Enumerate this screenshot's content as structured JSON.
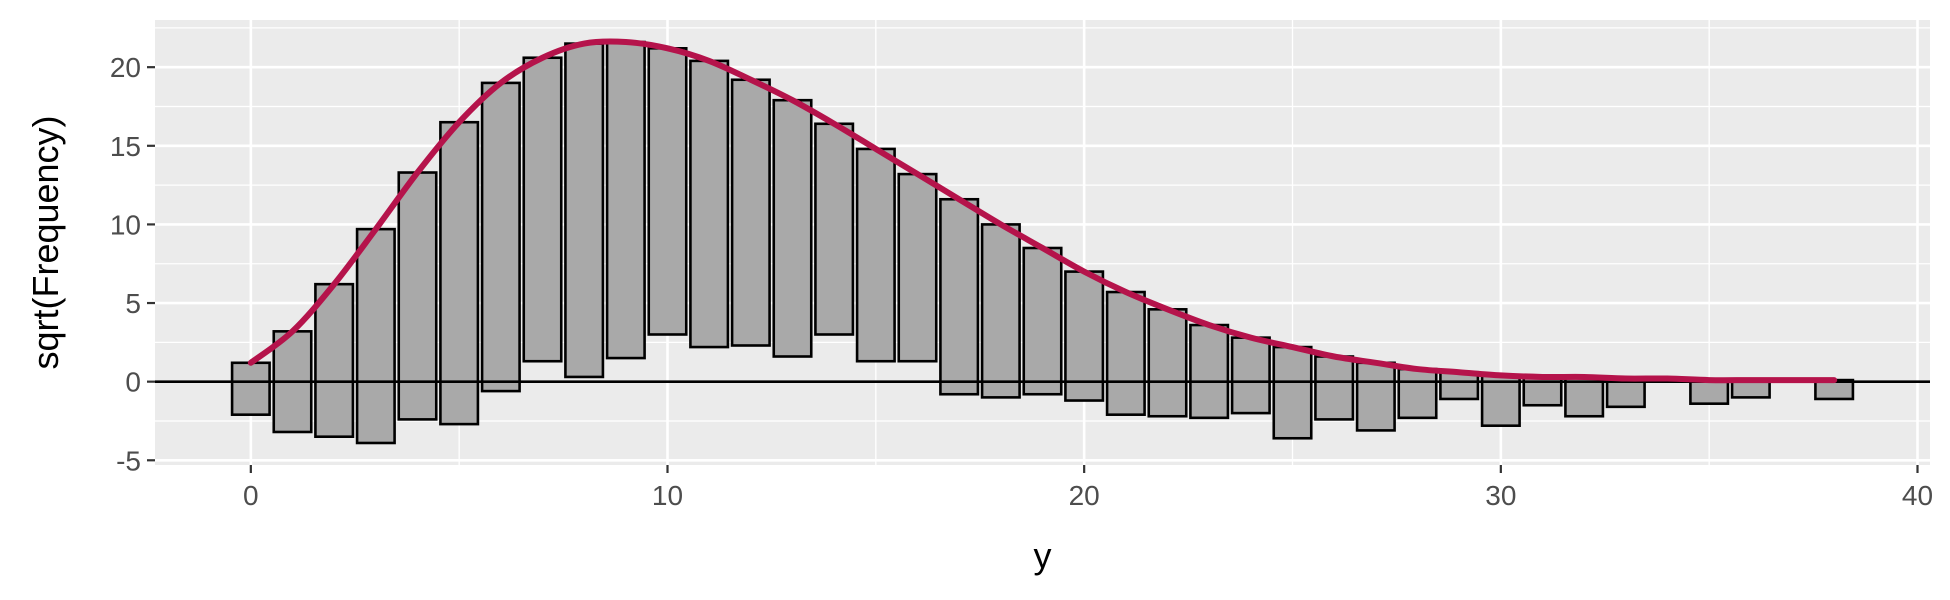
{
  "chart_data": {
    "type": "bar",
    "subtype": "hanging-rootogram",
    "title": "",
    "xlabel": "y",
    "ylabel": "sqrt(Frequency)",
    "xlim": [
      -2.3,
      40.3
    ],
    "ylim": [
      -5.3,
      23
    ],
    "x_ticks": [
      0,
      10,
      20,
      30,
      40
    ],
    "y_ticks": [
      -5,
      0,
      5,
      10,
      15,
      20
    ],
    "grid": true,
    "legend": "none",
    "bar_width": 0.9,
    "bars": [
      {
        "x": 0,
        "top": 1.2,
        "bottom": -2.1
      },
      {
        "x": 1,
        "top": 3.2,
        "bottom": -3.2
      },
      {
        "x": 2,
        "top": 6.2,
        "bottom": -3.5
      },
      {
        "x": 3,
        "top": 9.7,
        "bottom": -3.9
      },
      {
        "x": 4,
        "top": 13.3,
        "bottom": -2.4
      },
      {
        "x": 5,
        "top": 16.5,
        "bottom": -2.7
      },
      {
        "x": 6,
        "top": 19.0,
        "bottom": -0.6
      },
      {
        "x": 7,
        "top": 20.6,
        "bottom": 1.3
      },
      {
        "x": 8,
        "top": 21.5,
        "bottom": 0.3
      },
      {
        "x": 9,
        "top": 21.6,
        "bottom": 1.5
      },
      {
        "x": 10,
        "top": 21.2,
        "bottom": 3.0
      },
      {
        "x": 11,
        "top": 20.4,
        "bottom": 2.2
      },
      {
        "x": 12,
        "top": 19.2,
        "bottom": 2.3
      },
      {
        "x": 13,
        "top": 17.9,
        "bottom": 1.6
      },
      {
        "x": 14,
        "top": 16.4,
        "bottom": 3.0
      },
      {
        "x": 15,
        "top": 14.8,
        "bottom": 1.3
      },
      {
        "x": 16,
        "top": 13.2,
        "bottom": 1.3
      },
      {
        "x": 17,
        "top": 11.6,
        "bottom": -0.8
      },
      {
        "x": 18,
        "top": 10.0,
        "bottom": -1.0
      },
      {
        "x": 19,
        "top": 8.5,
        "bottom": -0.8
      },
      {
        "x": 20,
        "top": 7.0,
        "bottom": -1.2
      },
      {
        "x": 21,
        "top": 5.7,
        "bottom": -2.1
      },
      {
        "x": 22,
        "top": 4.6,
        "bottom": -2.2
      },
      {
        "x": 23,
        "top": 3.6,
        "bottom": -2.3
      },
      {
        "x": 24,
        "top": 2.8,
        "bottom": -2.0
      },
      {
        "x": 25,
        "top": 2.2,
        "bottom": -3.6
      },
      {
        "x": 26,
        "top": 1.6,
        "bottom": -2.4
      },
      {
        "x": 27,
        "top": 1.2,
        "bottom": -3.1
      },
      {
        "x": 28,
        "top": 0.8,
        "bottom": -2.3
      },
      {
        "x": 29,
        "top": 0.6,
        "bottom": -1.1
      },
      {
        "x": 30,
        "top": 0.4,
        "bottom": -2.8
      },
      {
        "x": 31,
        "top": 0.3,
        "bottom": -1.5
      },
      {
        "x": 32,
        "top": 0.3,
        "bottom": -2.2
      },
      {
        "x": 33,
        "top": 0.2,
        "bottom": -1.6
      },
      {
        "x": 35,
        "top": 0.1,
        "bottom": -1.4
      },
      {
        "x": 36,
        "top": 0.1,
        "bottom": -1.0
      },
      {
        "x": 38,
        "top": 0.1,
        "bottom": -1.1
      }
    ],
    "curve": {
      "x": [
        0,
        1,
        2,
        3,
        4,
        5,
        6,
        7,
        8,
        9,
        10,
        11,
        12,
        13,
        14,
        15,
        16,
        17,
        18,
        19,
        20,
        21,
        22,
        23,
        24,
        25,
        26,
        27,
        28,
        29,
        30,
        31,
        32,
        33,
        34,
        35,
        36,
        37,
        38
      ],
      "y": [
        1.2,
        3.2,
        6.2,
        9.7,
        13.3,
        16.5,
        19.0,
        20.6,
        21.5,
        21.6,
        21.2,
        20.4,
        19.2,
        17.9,
        16.4,
        14.8,
        13.2,
        11.6,
        10.0,
        8.5,
        7.0,
        5.7,
        4.6,
        3.6,
        2.8,
        2.2,
        1.6,
        1.2,
        0.8,
        0.6,
        0.4,
        0.3,
        0.3,
        0.2,
        0.2,
        0.1,
        0.1,
        0.1,
        0.1
      ]
    },
    "colors": {
      "panel": "#ebebeb",
      "grid": "#ffffff",
      "bar_fill": "#a9a9a9",
      "bar_stroke": "#000000",
      "curve": "#b5134b",
      "zero_line": "#000000"
    }
  }
}
